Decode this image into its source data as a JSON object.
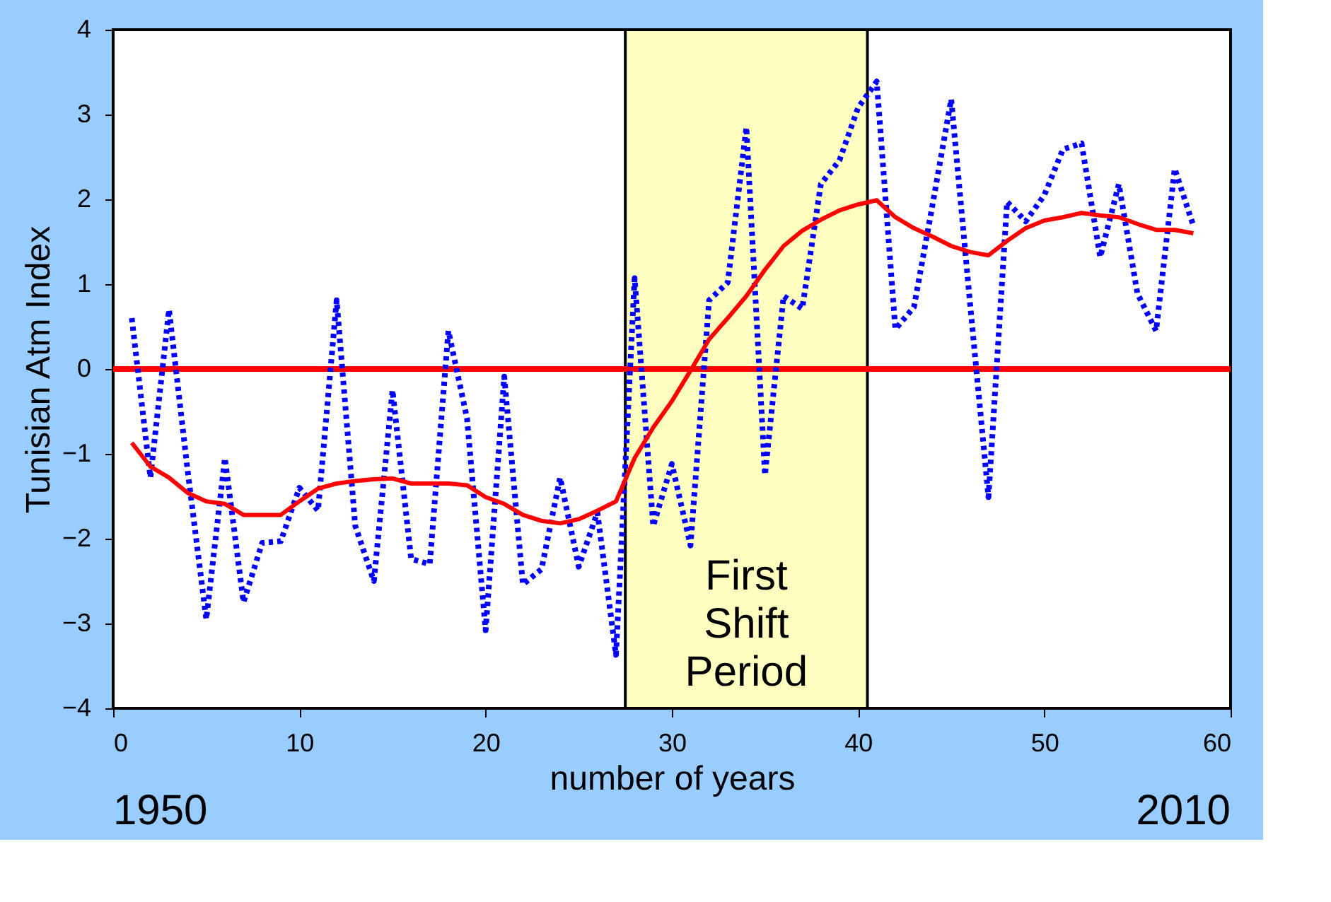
{
  "chart_data": {
    "type": "line",
    "xlabel": "number of years",
    "ylabel": "Tunisian Atm Index",
    "x": [
      1,
      2,
      3,
      4,
      5,
      6,
      7,
      8,
      9,
      10,
      11,
      12,
      13,
      14,
      15,
      16,
      17,
      18,
      19,
      20,
      21,
      22,
      23,
      24,
      25,
      26,
      27,
      28,
      29,
      30,
      31,
      32,
      33,
      34,
      35,
      36,
      37,
      38,
      39,
      40,
      41,
      42,
      43,
      44,
      45,
      46,
      47,
      48,
      49,
      50,
      51,
      52,
      53,
      54,
      55,
      56,
      57,
      58
    ],
    "series": [
      {
        "color": "#0000ff",
        "line_style": "dotted",
        "values": [
          0.6,
          -1.28,
          0.7,
          -1.2,
          -2.95,
          -1.05,
          -2.75,
          -2.05,
          -2.03,
          -1.4,
          -1.67,
          0.81,
          -1.85,
          -2.5,
          -0.25,
          -2.24,
          -2.3,
          0.45,
          -0.58,
          -3.08,
          -0.09,
          -2.54,
          -2.36,
          -1.28,
          -2.33,
          -1.69,
          -3.37,
          1.07,
          -1.85,
          -1.12,
          -2.08,
          0.81,
          1.02,
          2.85,
          -1.25,
          0.86,
          0.71,
          2.18,
          2.46,
          3.08,
          3.39,
          0.47,
          0.73,
          1.94,
          3.18,
          0.8,
          -1.51,
          1.97,
          1.74,
          2.05,
          2.59,
          2.66,
          1.32,
          2.18,
          0.89,
          0.45,
          2.36,
          1.69
        ]
      },
      {
        "color": "#ff0000",
        "line_style": "solid",
        "values": [
          -0.87,
          -1.15,
          -1.28,
          -1.46,
          -1.56,
          -1.59,
          -1.72,
          -1.72,
          -1.72,
          -1.56,
          -1.41,
          -1.35,
          -1.32,
          -1.3,
          -1.29,
          -1.35,
          -1.35,
          -1.35,
          -1.37,
          -1.51,
          -1.59,
          -1.72,
          -1.79,
          -1.82,
          -1.77,
          -1.67,
          -1.56,
          -1.05,
          -0.69,
          -0.38,
          -0.02,
          0.35,
          0.6,
          0.86,
          1.17,
          1.45,
          1.63,
          1.76,
          1.87,
          1.94,
          1.99,
          1.79,
          1.66,
          1.56,
          1.45,
          1.38,
          1.34,
          1.51,
          1.66,
          1.75,
          1.79,
          1.84,
          1.81,
          1.79,
          1.71,
          1.64,
          1.64,
          1.6
        ]
      }
    ],
    "xlim": [
      0,
      60
    ],
    "xticks": [
      0,
      10,
      20,
      30,
      40,
      50,
      60
    ],
    "ylim": [
      -4,
      4
    ],
    "yticks": [
      -4,
      -3,
      -2,
      -1,
      0,
      1,
      2,
      3,
      4
    ],
    "ref_lines": [
      {
        "axis": "y",
        "value": 0,
        "color": "#ff0000",
        "line_style": "solid"
      }
    ],
    "bands": [
      {
        "axis": "x",
        "from": 27.5,
        "to": 40.5,
        "label": "First Shift Period",
        "color": "#ffffc0"
      }
    ],
    "annotations": [
      "1950",
      "2010"
    ],
    "grid": false,
    "marker": "none"
  }
}
